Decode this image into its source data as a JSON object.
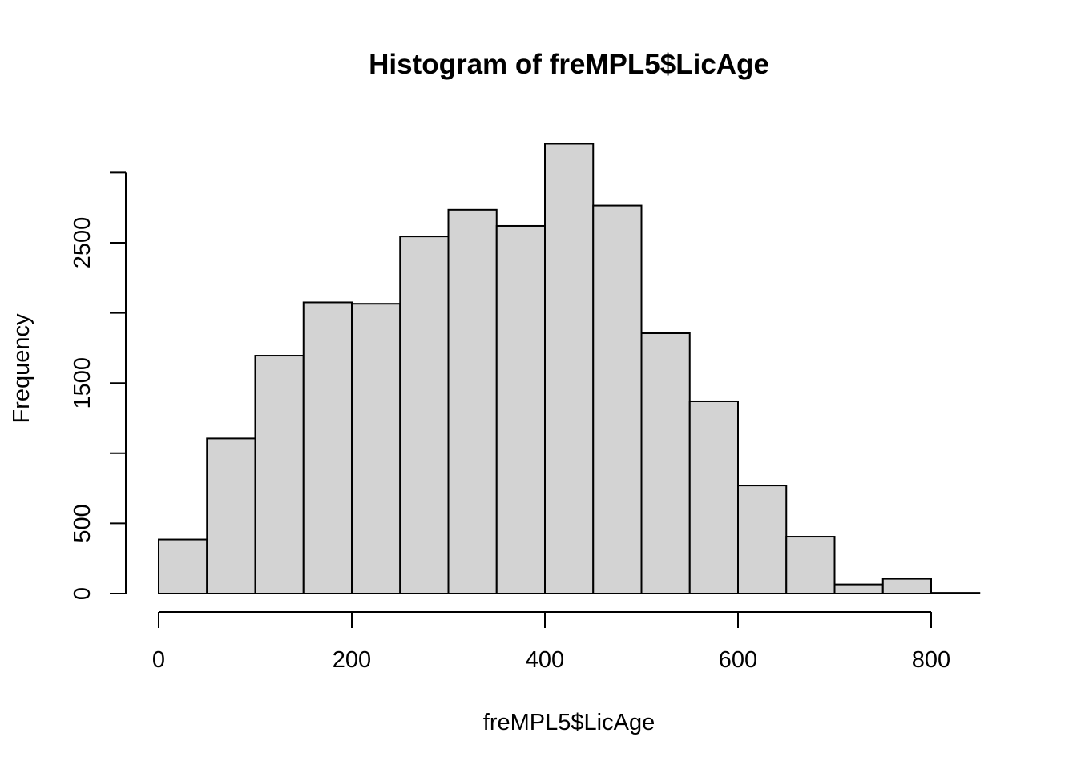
{
  "chart_data": {
    "type": "histogram",
    "title": "Histogram of freMPL5$LicAge",
    "xlabel": "freMPL5$LicAge",
    "ylabel": "Frequency",
    "bin_edges": [
      0,
      50,
      100,
      150,
      200,
      250,
      300,
      350,
      400,
      450,
      500,
      550,
      600,
      650,
      700,
      750,
      800,
      850
    ],
    "values": [
      385,
      1105,
      1695,
      2075,
      2065,
      2545,
      2735,
      2620,
      3205,
      2765,
      1855,
      1370,
      770,
      405,
      65,
      105,
      5
    ],
    "xlim": [
      0,
      850
    ],
    "ylim": [
      0,
      3000
    ],
    "x_ticks": [
      0,
      200,
      400,
      600,
      800
    ],
    "y_ticks": [
      0,
      500,
      1000,
      1500,
      2000,
      2500,
      3000
    ],
    "y_tick_labels": [
      "0",
      "500",
      "",
      "1500",
      "",
      "2500",
      ""
    ],
    "x_tick_labels": [
      "0",
      "200",
      "400",
      "600",
      "800"
    ],
    "bar_color": "#d3d3d3",
    "grid": false
  }
}
